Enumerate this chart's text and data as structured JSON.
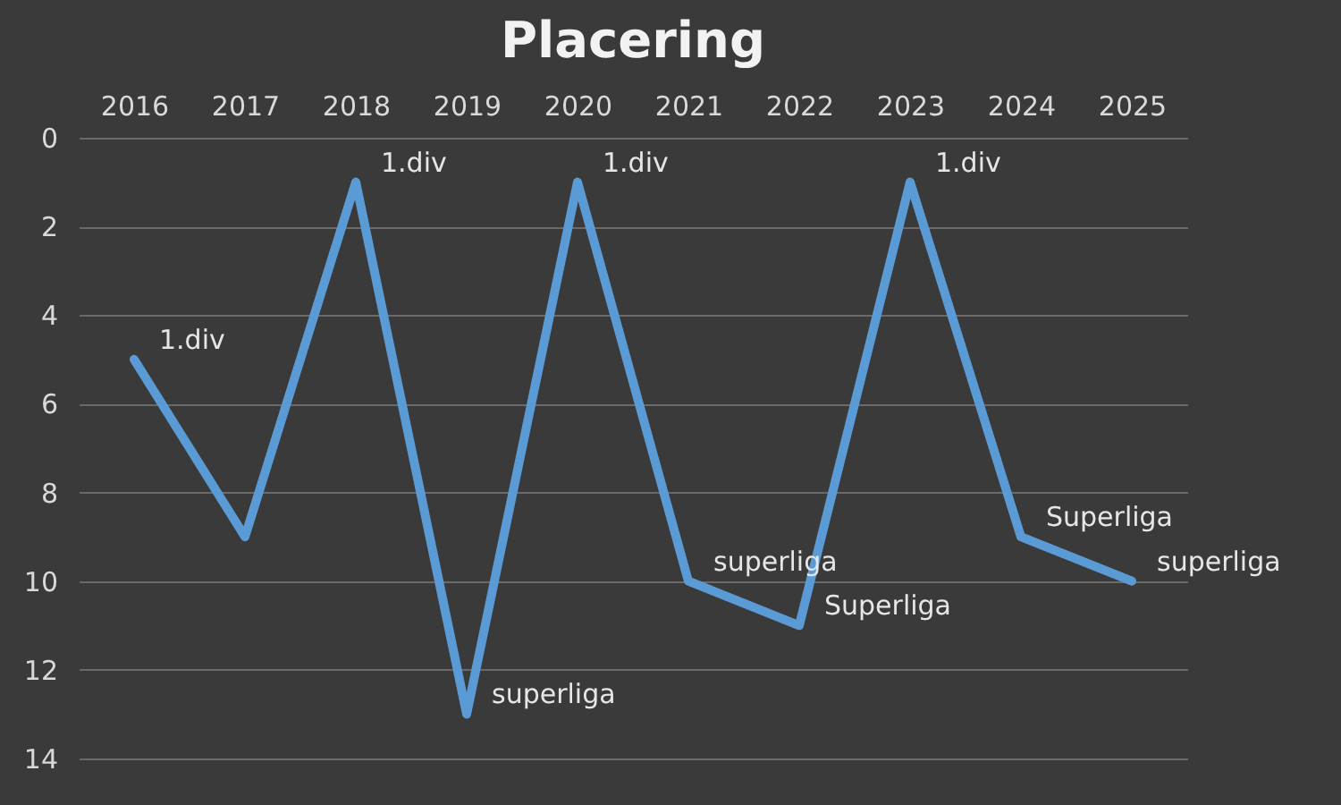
{
  "chart_data": {
    "type": "line",
    "title": "Placering",
    "categories": [
      "2016",
      "2017",
      "2018",
      "2019",
      "2020",
      "2021",
      "2022",
      "2023",
      "2024",
      "2025"
    ],
    "series": [
      {
        "color": "#5b9bd5",
        "values": [
          5,
          9,
          1,
          13,
          1,
          10,
          11,
          1,
          9,
          10
        ]
      }
    ],
    "annotations": [
      {
        "text": "1.div",
        "x": "2016",
        "y": 5
      },
      {
        "text": "1.div",
        "x": "2018",
        "y": 1
      },
      {
        "text": "superliga",
        "x": "2019",
        "y": 13
      },
      {
        "text": "1.div",
        "x": "2020",
        "y": 1
      },
      {
        "text": "superliga",
        "x": "2021",
        "y": 10
      },
      {
        "text": "Superliga",
        "x": "2022",
        "y": 11
      },
      {
        "text": "1.div",
        "x": "2023",
        "y": 1
      },
      {
        "text": "Superliga",
        "x": "2024",
        "y": 9
      },
      {
        "text": "superliga",
        "x": "2025",
        "y": 10
      }
    ],
    "ylim": [
      14,
      0
    ],
    "yticks": [
      0,
      2,
      4,
      6,
      8,
      10,
      12,
      14
    ],
    "grid": "y",
    "marker": "none",
    "line_style": "solid"
  }
}
